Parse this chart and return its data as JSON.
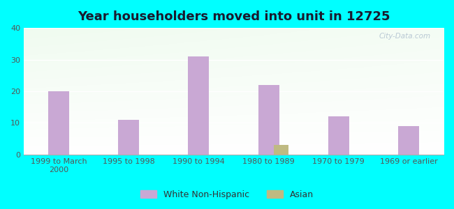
{
  "title": "Year householders moved into unit in 12725",
  "categories": [
    "1999 to March\n2000",
    "1995 to 1998",
    "1990 to 1994",
    "1980 to 1989",
    "1970 to 1979",
    "1969 or earlier"
  ],
  "white_values": [
    20,
    11,
    31,
    22,
    12,
    9
  ],
  "asian_values": [
    0,
    0,
    0,
    3,
    0,
    0
  ],
  "white_color": "#c9a8d4",
  "asian_color": "#bfba82",
  "ylim": [
    0,
    40
  ],
  "yticks": [
    0,
    10,
    20,
    30,
    40
  ],
  "background_outer": "#00ffff",
  "bar_width": 0.3,
  "title_fontsize": 13,
  "tick_fontsize": 8,
  "legend_fontsize": 9,
  "watermark": "City-Data.com"
}
